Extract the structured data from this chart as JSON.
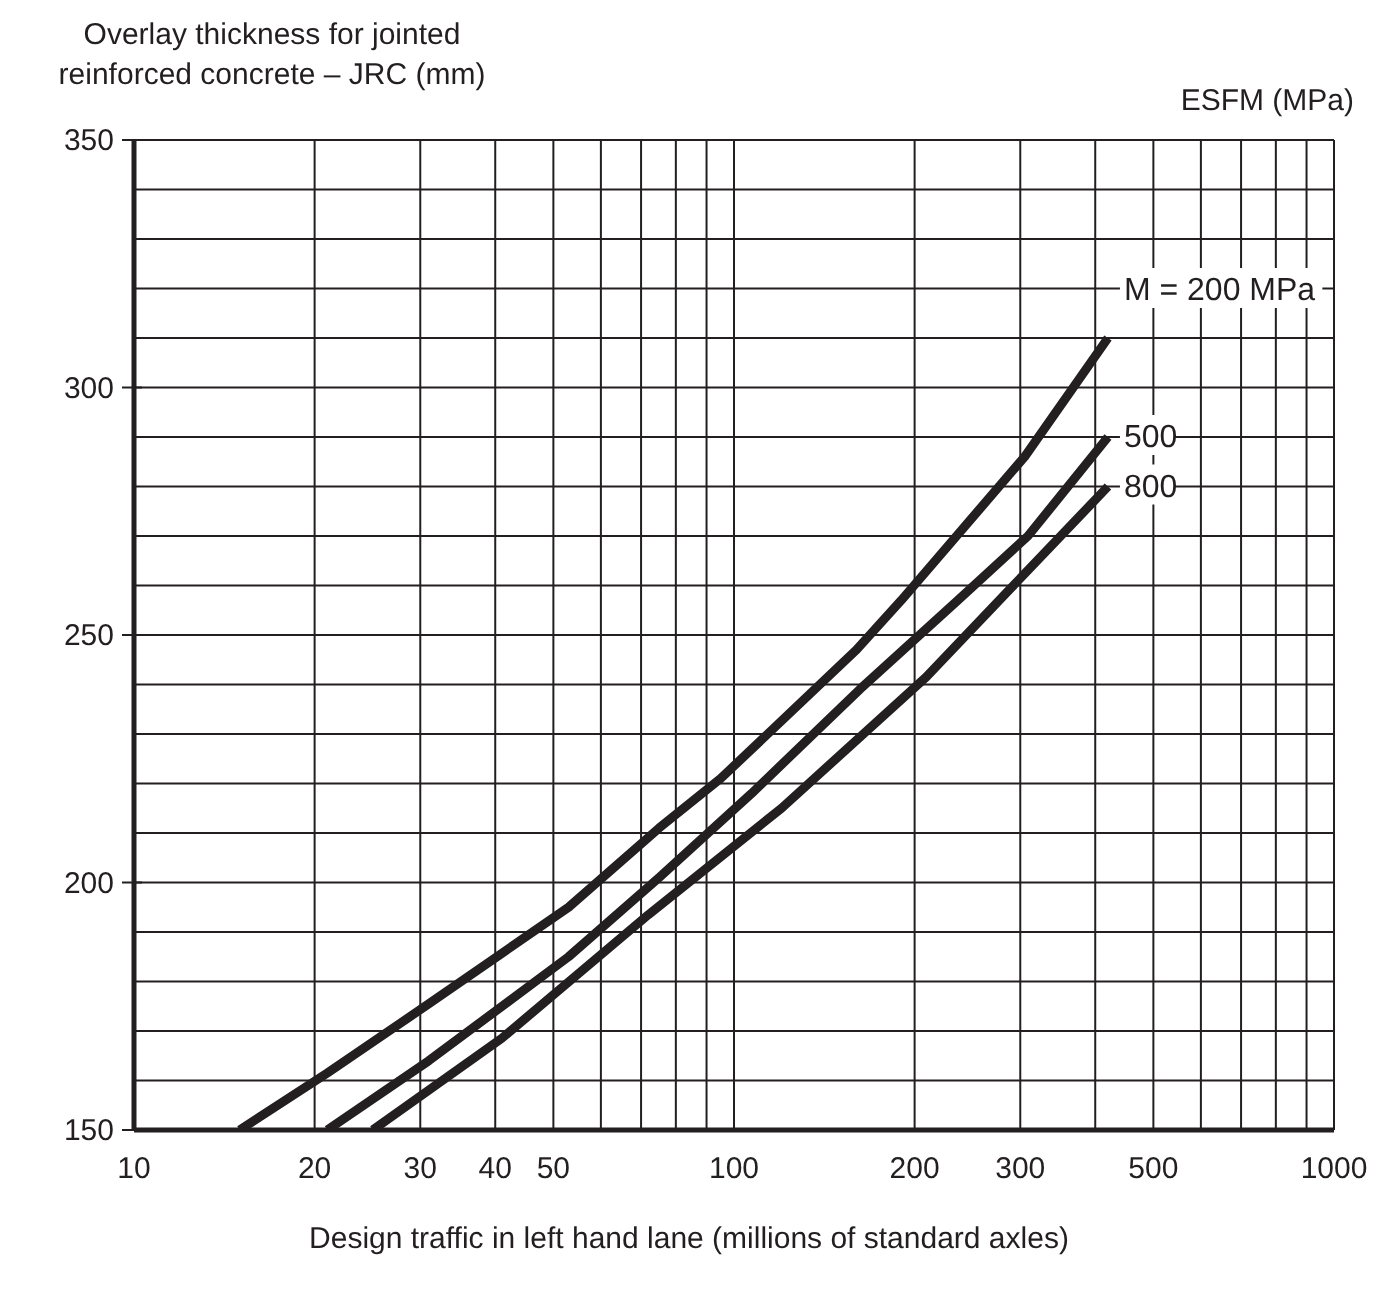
{
  "chart_data": {
    "type": "line",
    "xlabel": "Design traffic in left hand lane (millions of standard axles)",
    "ylabel": "Overlay thickness for jointed reinforced concrete – JRC (mm)",
    "legend_title": "ESFM (MPa)",
    "log": "x",
    "grid": true,
    "marker": "none",
    "line_style": "solid",
    "xlim": [
      10,
      1000
    ],
    "ylim": [
      150,
      350
    ],
    "xticks": [
      10,
      20,
      30,
      40,
      50,
      {
        "value": 60,
        "label": null
      },
      {
        "value": 70,
        "label": null
      },
      {
        "value": 80,
        "label": null
      },
      {
        "value": 90,
        "label": null
      },
      100,
      200,
      300,
      {
        "value": 400,
        "label": null
      },
      500,
      {
        "value": 600,
        "label": null
      },
      {
        "value": 700,
        "label": null
      },
      {
        "value": 800,
        "label": null
      },
      {
        "value": 900,
        "label": null
      },
      1000
    ],
    "yticks": [
      150,
      {
        "value": 160,
        "label": null
      },
      {
        "value": 170,
        "label": null
      },
      {
        "value": 180,
        "label": null
      },
      {
        "value": 190,
        "label": null
      },
      200,
      {
        "value": 210,
        "label": null
      },
      {
        "value": 220,
        "label": null
      },
      {
        "value": 230,
        "label": null
      },
      {
        "value": 240,
        "label": null
      },
      250,
      {
        "value": 260,
        "label": null
      },
      {
        "value": 270,
        "label": null
      },
      {
        "value": 280,
        "label": null
      },
      {
        "value": 290,
        "label": null
      },
      300,
      {
        "value": 310,
        "label": null
      },
      {
        "value": 320,
        "label": null
      },
      {
        "value": 330,
        "label": null
      },
      {
        "value": 340,
        "label": null
      },
      350
    ],
    "series": [
      {
        "name": "M = 200 MPa",
        "color": "#231f20",
        "x": [
          15,
          21,
          31,
          53,
          75,
          95,
          160,
          190,
          305,
          420
        ],
        "values": [
          150,
          161.5,
          175.5,
          195,
          211,
          221,
          247,
          257,
          286,
          310
        ]
      },
      {
        "name": "500",
        "color": "#231f20",
        "x": [
          21,
          31,
          53,
          75,
          107,
          162,
          236,
          309,
          420
        ],
        "values": [
          150,
          164,
          185,
          201,
          218,
          239,
          257,
          270,
          290
        ]
      },
      {
        "name": "800",
        "color": "#231f20",
        "x": [
          25,
          41,
          72,
          120,
          209,
          287,
          420
        ],
        "values": [
          150,
          168.5,
          193.5,
          215,
          241.5,
          259,
          280
        ]
      }
    ]
  }
}
